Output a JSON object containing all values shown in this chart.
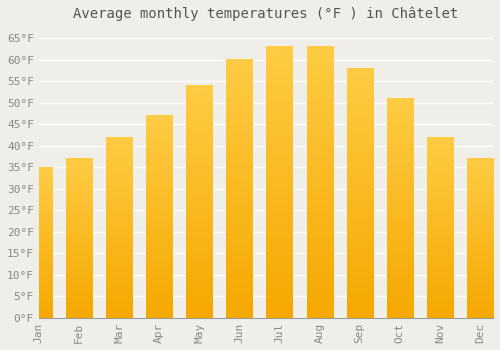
{
  "title": "Average monthly temperatures (°F ) in Châtelet",
  "months": [
    "Jan",
    "Feb",
    "Mar",
    "Apr",
    "May",
    "Jun",
    "Jul",
    "Aug",
    "Sep",
    "Oct",
    "Nov",
    "Dec"
  ],
  "values": [
    35,
    37,
    42,
    47,
    54,
    60,
    63,
    63,
    58,
    51,
    42,
    37
  ],
  "bar_color_top": "#FFCC44",
  "bar_color_bottom": "#F5A800",
  "background_color": "#F0EEE8",
  "grid_color": "#FFFFFF",
  "yticks": [
    0,
    5,
    10,
    15,
    20,
    25,
    30,
    35,
    40,
    45,
    50,
    55,
    60,
    65
  ],
  "ylim": [
    0,
    67
  ],
  "title_fontsize": 10,
  "tick_fontsize": 8,
  "font_color": "#888888",
  "title_color": "#555555"
}
